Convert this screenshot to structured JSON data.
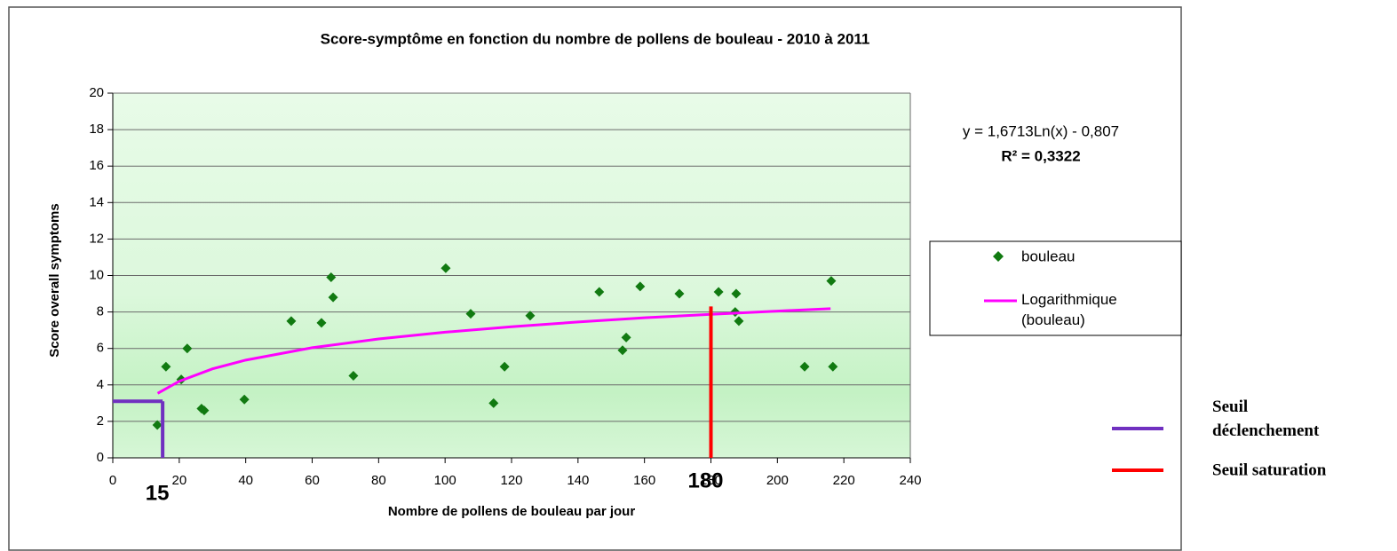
{
  "chart_data": {
    "type": "scatter",
    "title": "Score-symptôme en fonction du nombre de pollens de bouleau - 2010 à 2011",
    "xlabel": "Nombre de pollens de bouleau par jour",
    "ylabel": "Score overall symptoms",
    "xlim": [
      0,
      240
    ],
    "ylim": [
      0,
      20
    ],
    "xticks": [
      0,
      20,
      40,
      60,
      80,
      100,
      120,
      140,
      160,
      180,
      200,
      220,
      240
    ],
    "yticks": [
      0,
      2,
      4,
      6,
      8,
      10,
      12,
      14,
      16,
      18,
      20
    ],
    "grid": true,
    "series": [
      {
        "name": "bouleau",
        "color": "#117a11",
        "type": "scatter",
        "x": [
          13.4,
          16,
          20.6,
          22.4,
          26.7,
          27.5,
          39.6,
          53.7,
          62.8,
          65.7,
          66.3,
          72.4,
          100.2,
          107.7,
          114.6,
          117.9,
          125.6,
          146.4,
          153.4,
          154.5,
          158.7,
          170.5,
          182.3,
          187.3,
          187.6,
          188.4,
          208.2,
          216.2,
          216.7
        ],
        "values": [
          1.8,
          5.0,
          4.3,
          6.0,
          2.7,
          2.6,
          3.2,
          7.5,
          7.4,
          9.9,
          8.8,
          4.5,
          10.4,
          7.9,
          3.0,
          5.0,
          7.8,
          9.1,
          5.9,
          6.6,
          9.4,
          9.0,
          9.1,
          8.0,
          9.0,
          7.5,
          5.0,
          9.7,
          5.0
        ]
      },
      {
        "name": "Logarithmique (bouleau)",
        "color": "#ff00ff",
        "type": "line",
        "x": [
          13.5,
          20,
          30,
          40,
          60,
          80,
          100,
          120,
          140,
          160,
          180,
          200,
          216
        ],
        "values": [
          3.54,
          4.2,
          4.88,
          5.36,
          6.04,
          6.52,
          6.89,
          7.19,
          7.45,
          7.68,
          7.87,
          8.05,
          8.18
        ]
      }
    ],
    "equation": "y = 1,6713Ln(x) - 0,807",
    "r2": "R² = 0,3322",
    "thresholds": [
      {
        "name": "Seuil déclenchement",
        "color": "#7030c0",
        "x": 15,
        "y": 3.1,
        "horizontal": true
      },
      {
        "name": "Seuil saturation",
        "color": "#ff0000",
        "x": 180,
        "y": 8.3,
        "horizontal": false
      }
    ]
  }
}
